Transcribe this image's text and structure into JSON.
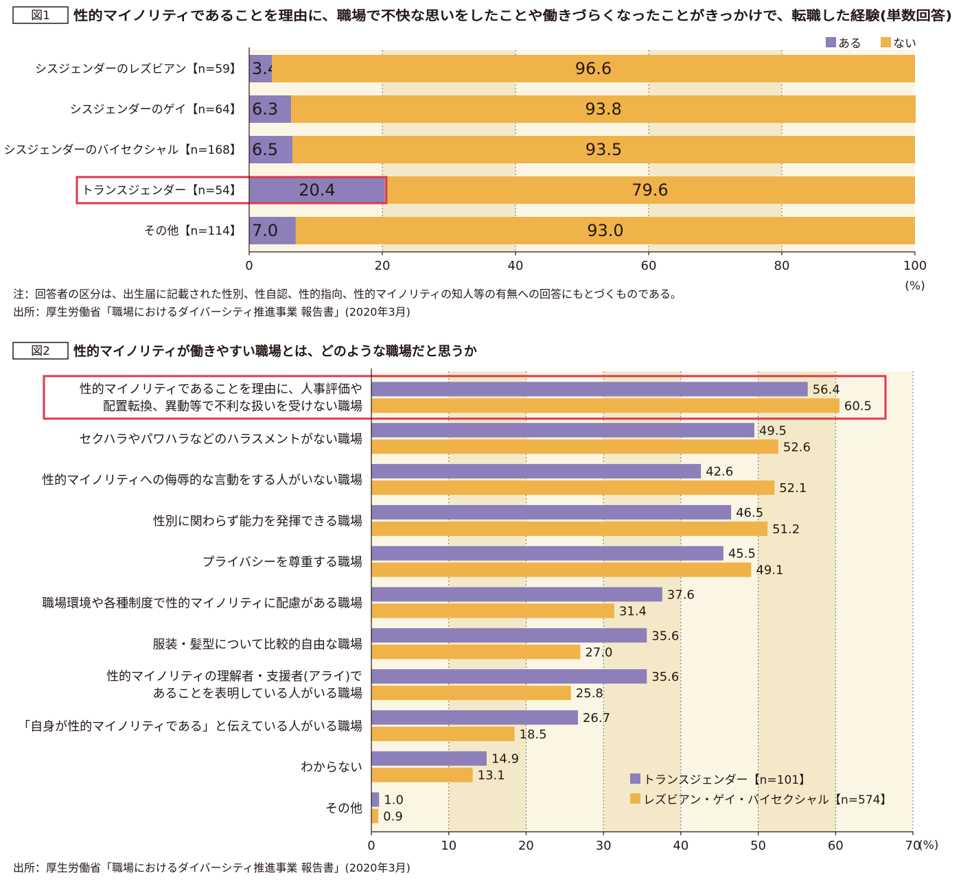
{
  "colors": {
    "purple": "#8c7fba",
    "orange": "#efb34a",
    "band_dark": "#f3e9c8",
    "band_light": "#fbf6e4",
    "highlight": "#e4364a"
  },
  "figure1": {
    "badge": "図1",
    "title": "性的マイノリティであることを理由に、職場で不快な思いをしたことや働きづらくなったことがきっかけで、転職した経験(単数回答)",
    "note": "注：回答者の区分は、出生届に記載された性別、性自認、性的指向、性的マイノリティの知人等の有無への回答にもとづくものである。",
    "source": "出所：厚生労働省「職場におけるダイバーシティ推進事業 報告書」(2020年3月)",
    "unit": "(%)"
  },
  "figure2": {
    "badge": "図2",
    "title": "性的マイノリティが働きやすい職場とは、どのような職場だと思うか",
    "source": "出所：厚生労働省「職場におけるダイバーシティ推進事業 報告書」(2020年3月)",
    "unit": "(%)"
  },
  "chart_data": [
    {
      "type": "bar",
      "orientation": "horizontal",
      "stacked": true,
      "categories": [
        "シスジェンダーのレズビアン【n=59】",
        "シスジェンダーのゲイ【n=64】",
        "シスジェンダーのバイセクシャル【n=168】",
        "トランスジェンダー【n=54】",
        "その他【n=114】"
      ],
      "series": [
        {
          "name": "ある",
          "values": [
            3.4,
            6.3,
            6.5,
            20.4,
            7.0
          ],
          "labels": [
            "3.4",
            "6.3",
            "6.5",
            "20.4",
            "7.0"
          ]
        },
        {
          "name": "ない",
          "values": [
            96.6,
            93.8,
            93.5,
            79.6,
            93.0
          ],
          "labels": [
            "96.6",
            "93.8",
            "93.5",
            "79.6",
            "93.0"
          ]
        }
      ],
      "xlim": [
        0,
        100
      ],
      "xticks": [
        "0",
        "20",
        "40",
        "60",
        "80",
        "100"
      ],
      "unit": "(%)",
      "highlighted_category": 3,
      "legend": "top-right"
    },
    {
      "type": "bar",
      "orientation": "horizontal",
      "stacked": false,
      "categories": [
        [
          "性的マイノリティであることを理由に、人事評価や",
          "配置転換、異動等で不利な扱いを受けない職場"
        ],
        [
          "セクハラやパワハラなどのハラスメントがない職場"
        ],
        [
          "性的マイノリティへの侮辱的な言動をする人がいない職場"
        ],
        [
          "性別に関わらず能力を発揮できる職場"
        ],
        [
          "プライバシーを尊重する職場"
        ],
        [
          "職場環境や各種制度で性的マイノリティに配慮がある職場"
        ],
        [
          "服装・髪型について比較的自由な職場"
        ],
        [
          "性的マイノリティの理解者・支援者(アライ)で",
          "あることを表明している人がいる職場"
        ],
        [
          "「自身が性的マイノリティである」と伝えている人がいる職場"
        ],
        [
          "わからない"
        ],
        [
          "その他"
        ]
      ],
      "series": [
        {
          "name": "トランスジェンダー【n=101】",
          "values": [
            56.4,
            49.5,
            42.6,
            46.5,
            45.5,
            37.6,
            35.6,
            35.6,
            26.7,
            14.9,
            1.0
          ],
          "labels": [
            "56.4",
            "49.5",
            "42.6",
            "46.5",
            "45.5",
            "37.6",
            "35.6",
            "35.6",
            "26.7",
            "14.9",
            "1.0"
          ]
        },
        {
          "name": "レズビアン・ゲイ・バイセクシャル【n=574】",
          "values": [
            60.5,
            52.6,
            52.1,
            51.2,
            49.1,
            31.4,
            27.0,
            25.8,
            18.5,
            13.1,
            0.9
          ],
          "labels": [
            "60.5",
            "52.6",
            "52.1",
            "51.2",
            "49.1",
            "31.4",
            "27.0",
            "25.8",
            "18.5",
            "13.1",
            "0.9"
          ]
        }
      ],
      "xlim": [
        0,
        70
      ],
      "xticks": [
        "0",
        "10",
        "20",
        "30",
        "40",
        "50",
        "60",
        "70"
      ],
      "unit": "(%)",
      "highlighted_category": 0,
      "legend": "bottom-right"
    }
  ]
}
